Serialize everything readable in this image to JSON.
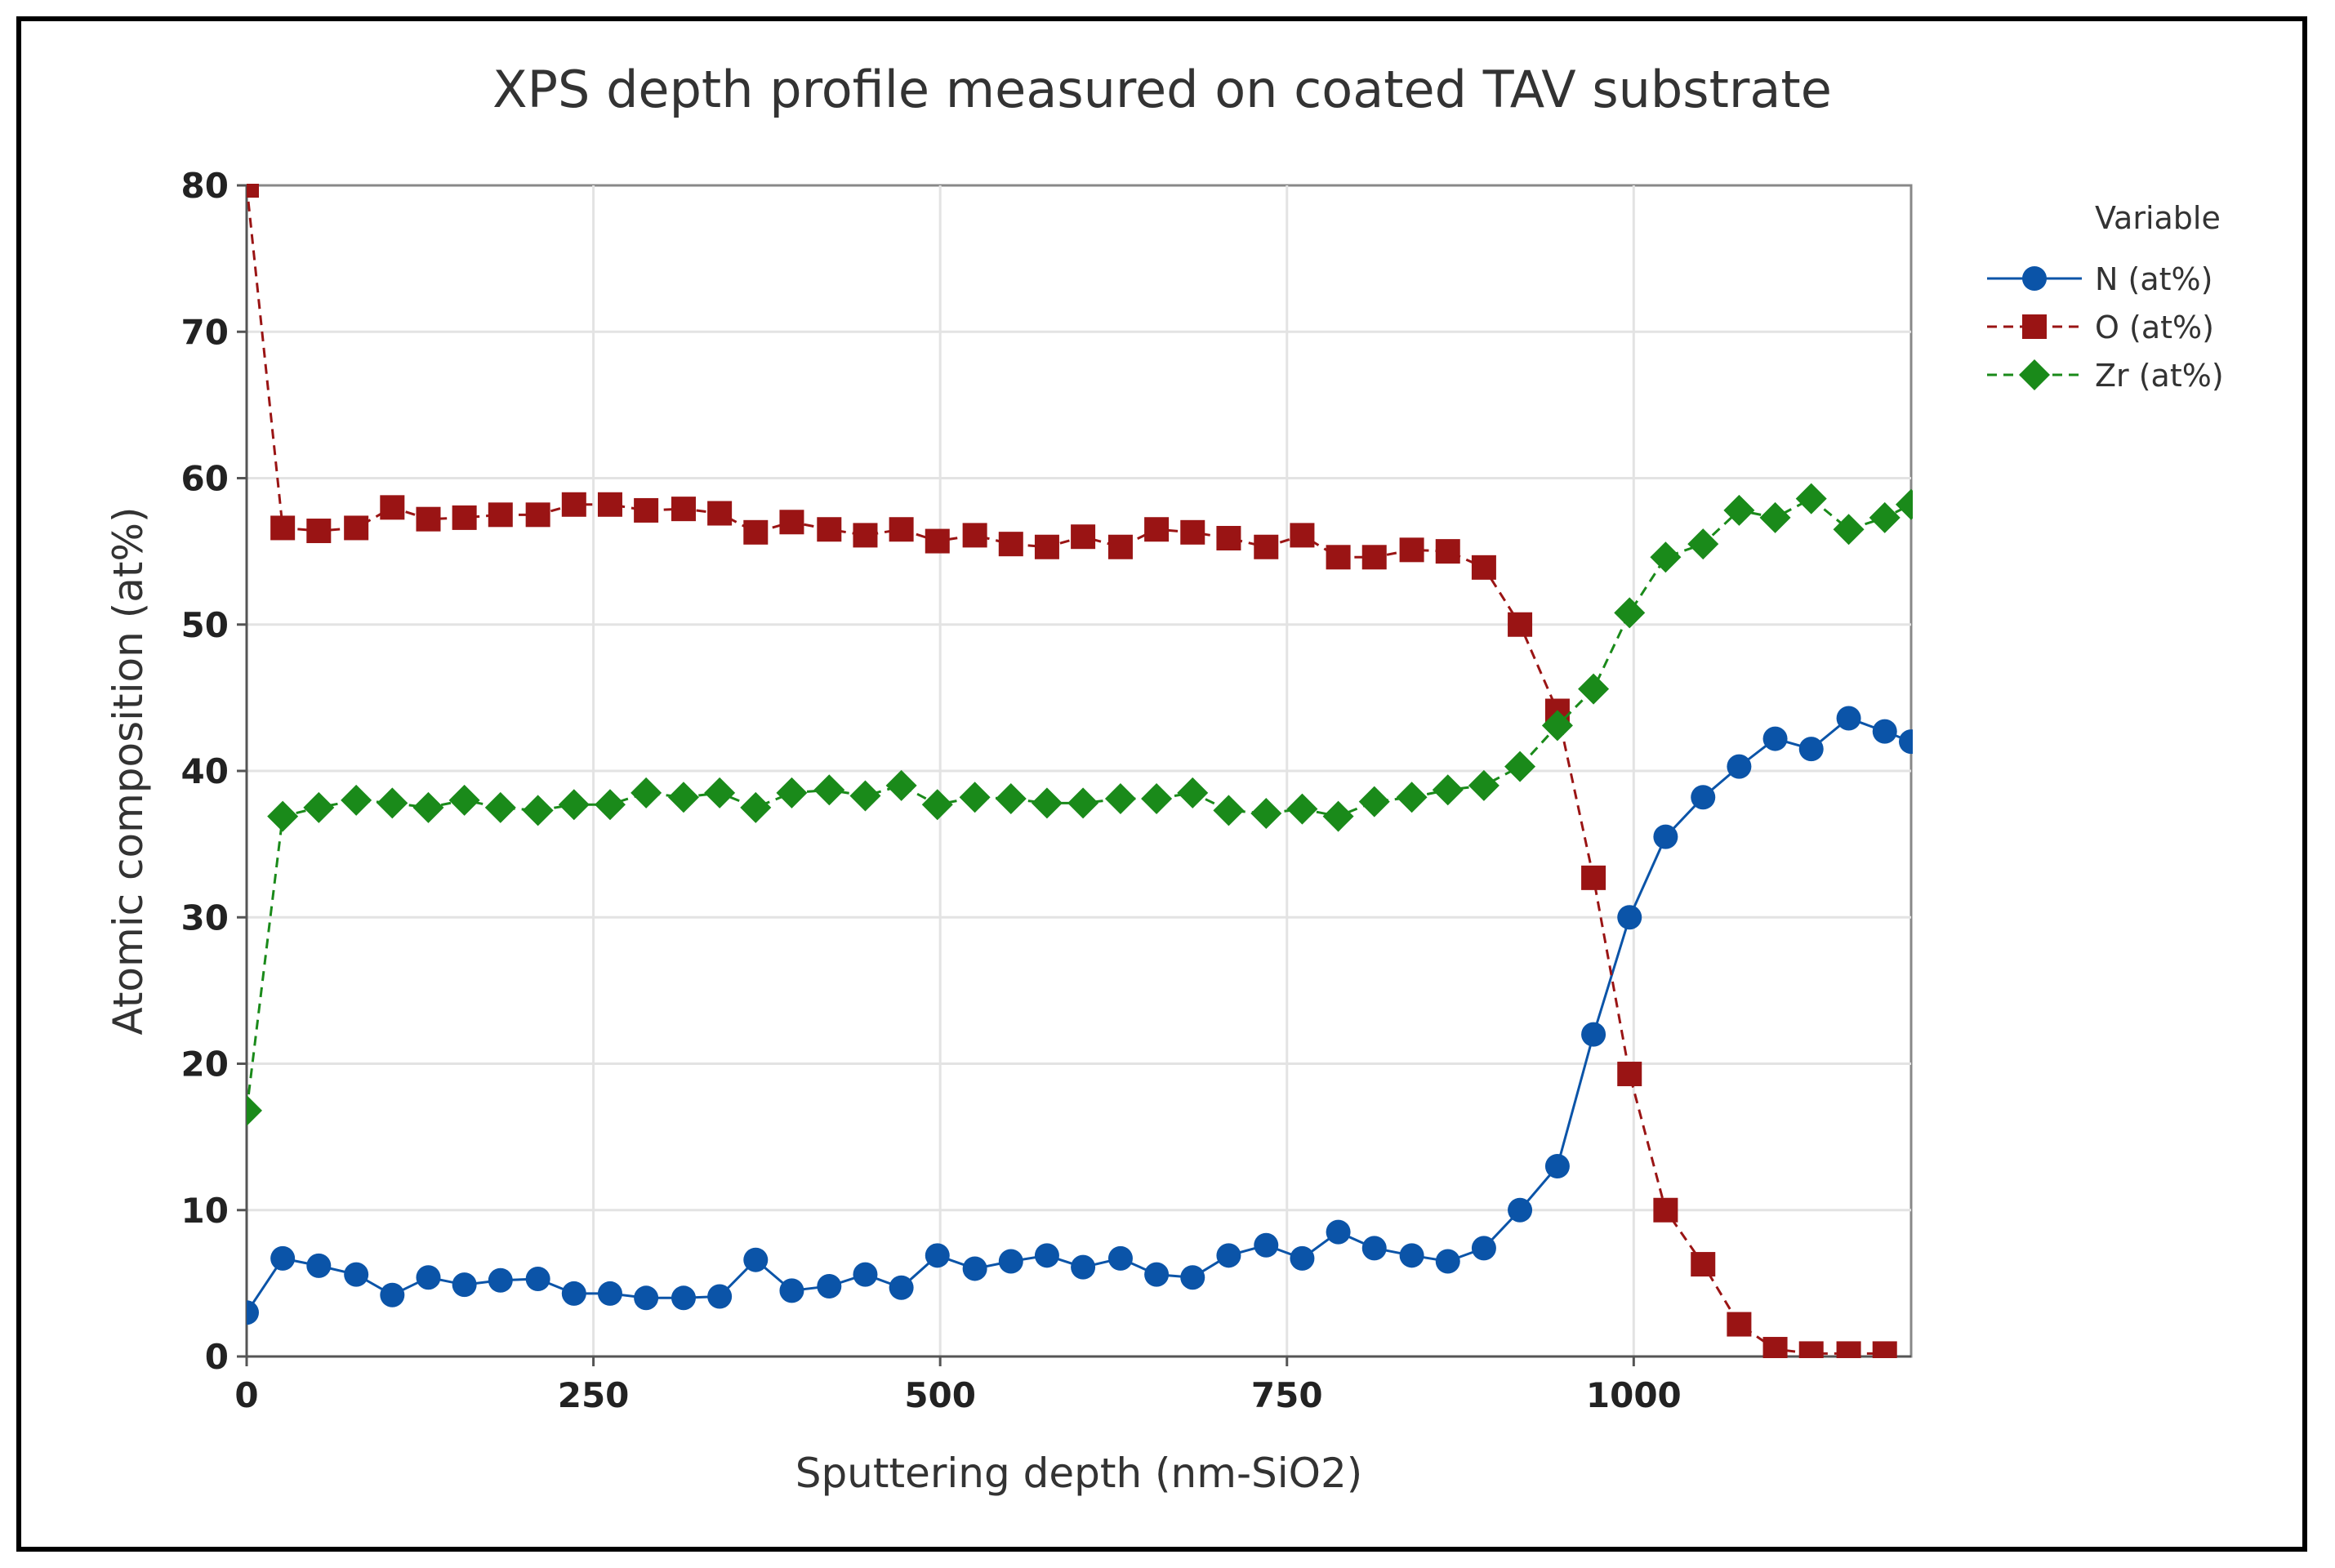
{
  "chart_data": {
    "type": "line",
    "title": "XPS depth profile measured on coated TAV substrate",
    "xlabel": "Sputtering depth (nm-SiO2)",
    "ylabel": "Atomic composition (at%)",
    "xlim": [
      0,
      1200
    ],
    "ylim": [
      0,
      80
    ],
    "xticks": [
      0,
      250,
      500,
      750,
      1000
    ],
    "yticks": [
      0,
      10,
      20,
      30,
      40,
      50,
      60,
      70,
      80
    ],
    "grid": true,
    "legend_title": "Variable",
    "legend_position": "top-right",
    "x": [
      0,
      26,
      52,
      79,
      105,
      131,
      157,
      183,
      210,
      236,
      262,
      288,
      315,
      341,
      367,
      393,
      420,
      446,
      472,
      498,
      525,
      551,
      577,
      603,
      630,
      656,
      682,
      708,
      735,
      761,
      787,
      813,
      840,
      866,
      892,
      918,
      945,
      971,
      997,
      1023,
      1050,
      1076,
      1102,
      1128,
      1155,
      1181,
      1200
    ],
    "series": [
      {
        "name": "N (at%)",
        "color": "#0b54a8",
        "marker": "circle",
        "line": "solid",
        "values": [
          3.0,
          6.7,
          6.2,
          5.6,
          4.2,
          5.4,
          4.9,
          5.2,
          5.3,
          4.3,
          4.3,
          4.0,
          4.0,
          4.1,
          6.6,
          4.5,
          4.8,
          5.6,
          4.7,
          6.9,
          6.0,
          6.5,
          6.9,
          6.1,
          6.7,
          5.6,
          5.4,
          6.9,
          7.6,
          6.7,
          8.5,
          7.4,
          6.9,
          6.5,
          7.4,
          10.0,
          13.0,
          22.0,
          30.0,
          35.5,
          38.2,
          40.3,
          42.2,
          41.5,
          43.6,
          42.7,
          42.0
        ]
      },
      {
        "name": "O (at%)",
        "color": "#9a1414",
        "marker": "square",
        "line": "dashed",
        "values": [
          80.0,
          56.6,
          56.4,
          56.6,
          58.0,
          57.2,
          57.3,
          57.5,
          57.5,
          58.2,
          58.2,
          57.8,
          57.9,
          57.6,
          56.3,
          57.0,
          56.5,
          56.1,
          56.5,
          55.7,
          56.1,
          55.5,
          55.3,
          56.0,
          55.3,
          56.5,
          56.3,
          55.9,
          55.3,
          56.1,
          54.6,
          54.6,
          55.1,
          55.0,
          53.9,
          50.0,
          44.1,
          32.7,
          19.3,
          10.0,
          6.3,
          2.2,
          0.5,
          0.2,
          0.2,
          0.2,
          null
        ]
      },
      {
        "name": "Zr (at%)",
        "color": "#1a8a1a",
        "marker": "diamond",
        "line": "dashed",
        "values": [
          16.8,
          36.9,
          37.5,
          38.0,
          37.8,
          37.5,
          38.0,
          37.5,
          37.3,
          37.7,
          37.7,
          38.5,
          38.2,
          38.5,
          37.5,
          38.5,
          38.7,
          38.3,
          39.0,
          37.7,
          38.2,
          38.1,
          37.8,
          37.8,
          38.1,
          38.1,
          38.5,
          37.3,
          37.1,
          37.4,
          36.9,
          37.9,
          38.2,
          38.7,
          39.0,
          40.3,
          43.1,
          45.6,
          50.8,
          54.6,
          55.5,
          57.8,
          57.3,
          58.6,
          56.5,
          57.3,
          58.2
        ]
      }
    ]
  }
}
